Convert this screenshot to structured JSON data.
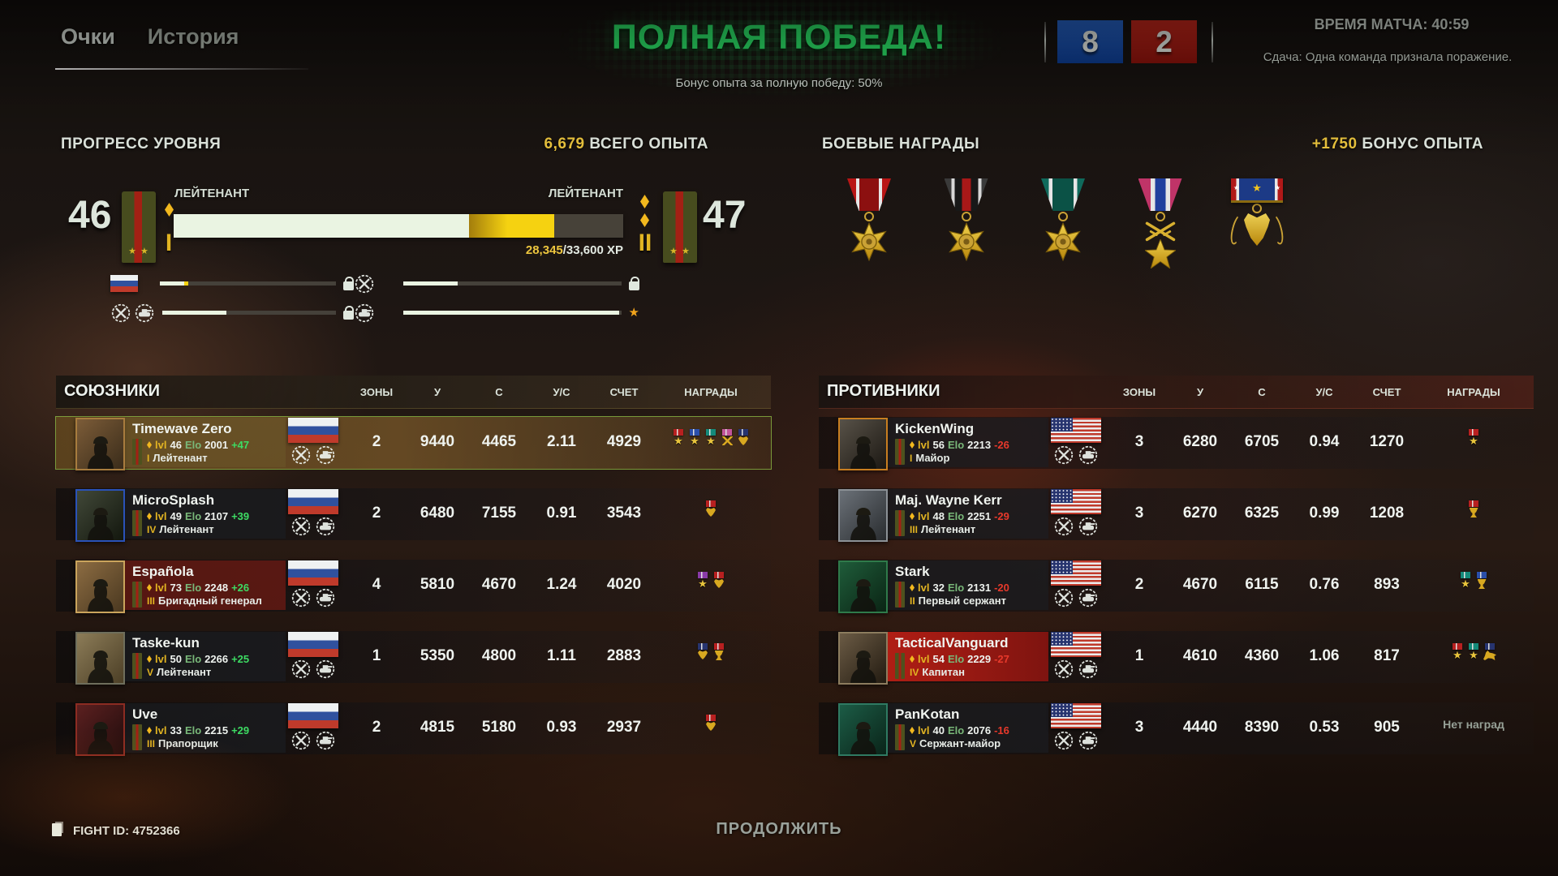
{
  "colors": {
    "victory_green": "#2ef26e",
    "xp_yellow": "#edc63e",
    "positive_green": "#3ddb63",
    "negative_red": "#e8392b",
    "score_blue": "#1a55b4",
    "score_red": "#b81c12",
    "gold": "#e2b422"
  },
  "labels": {
    "lvl": "lvl",
    "elo": "Elo"
  },
  "header": {
    "tabs": [
      {
        "label": "Очки"
      },
      {
        "label": "История"
      }
    ],
    "victory_title": "ПОЛНАЯ ПОБЕДА!",
    "victory_subtitle": "Бонус опыта за полную победу: 50%",
    "score_allies": "8",
    "score_enemies": "2",
    "match_time": "ВРЕМЯ МАТЧА: 40:59",
    "surrender_note": "Сдача: Одна команда признала поражение."
  },
  "progress": {
    "title": "ПРОГРЕСС УРОВНЯ",
    "total_xp": "6,679",
    "total_xp_label": " ВСЕГО ОПЫТА",
    "level_current": "46",
    "level_next": "47",
    "rank_current": "ЛЕЙТЕНАНТ",
    "rank_next": "ЛЕЙТЕНАНТ",
    "tier_current": "I",
    "tier_next": "II",
    "xp_current": "28,345",
    "xp_needed": "/33,600 XP",
    "bar_base_pct": 65.7,
    "bar_gain_pct": 19,
    "unlocks": [
      {
        "icons": [
          "flag-ru"
        ],
        "fill_pct": 14,
        "gain_pct": 2,
        "tip": "lock"
      },
      {
        "icons": [
          "wreath"
        ],
        "fill_pct": 25,
        "gain_pct": 0,
        "tip": "lock"
      },
      {
        "icons": [
          "wreath",
          "tank"
        ],
        "fill_pct": 37,
        "gain_pct": 0,
        "tip": "lock"
      },
      {
        "icons": [
          "tank"
        ],
        "fill_pct": 99,
        "gain_pct": 0,
        "tip": "star"
      }
    ]
  },
  "rewards": {
    "title": "БОЕВЫЕ НАГРАДЫ",
    "bonus": "+1750",
    "bonus_label": " БОНУС ОПЫТА",
    "medals": [
      {
        "name": "scales-star-medal",
        "ribbon": "r1"
      },
      {
        "name": "skull-star-medal",
        "ribbon": "r2"
      },
      {
        "name": "shield-star-medal",
        "ribbon": "r3"
      },
      {
        "name": "swords-star-medal",
        "ribbon": "r4"
      },
      {
        "name": "hound-medal",
        "ribbon": "r5"
      }
    ]
  },
  "allies": {
    "title": "СОЮЗНИКИ",
    "columns": [
      "ЗОНЫ",
      "У",
      "С",
      "У/С",
      "СЧЕТ",
      "НАГРАДЫ"
    ],
    "rows": [
      {
        "name": "Timewave Zero",
        "lvl": "46",
        "elo": "2001",
        "delta": "+47",
        "tier": "I",
        "rank": "Лейтенант",
        "nation": "ru",
        "zones": "2",
        "u": "9440",
        "c": "4465",
        "uc": "2.11",
        "score": "4929",
        "awards": [
          {
            "t": "star",
            "r": "#b82020"
          },
          {
            "t": "star",
            "r": "#2a4faa"
          },
          {
            "t": "star",
            "r": "#148a7a"
          },
          {
            "t": "swords",
            "r": "#c2559a"
          },
          {
            "t": "dog",
            "r": "#27346f"
          }
        ],
        "style": {
          "row": "hl",
          "plate": "pl-tan",
          "av": "av-a0",
          "bc": "#a87c3e"
        }
      },
      {
        "name": "MicroSplash",
        "lvl": "49",
        "elo": "2107",
        "delta": "+39",
        "tier": "IV",
        "rank": "Лейтенант",
        "nation": "ru",
        "zones": "2",
        "u": "6480",
        "c": "7155",
        "uc": "0.91",
        "score": "3543",
        "awards": [
          {
            "t": "dog",
            "r": "#b82020"
          }
        ],
        "style": {
          "row": "",
          "plate": "",
          "av": "av-a1",
          "bc": "#2a52b8"
        }
      },
      {
        "name": "Española",
        "lvl": "73",
        "elo": "2248",
        "delta": "+26",
        "tier": "III",
        "rank": "Бригадный генерал",
        "nation": "ru",
        "zones": "4",
        "u": "5810",
        "c": "4670",
        "uc": "1.24",
        "score": "4020",
        "awards": [
          {
            "t": "star",
            "r": "#8a3aa8"
          },
          {
            "t": "dog",
            "r": "#b82020"
          }
        ],
        "style": {
          "row": "",
          "plate": "pl-dred",
          "av": "av-a2",
          "bc": "#caa45c"
        }
      },
      {
        "name": "Taske-kun",
        "lvl": "50",
        "elo": "2266",
        "delta": "+25",
        "tier": "V",
        "rank": "Лейтенант",
        "nation": "ru",
        "zones": "1",
        "u": "5350",
        "c": "4800",
        "uc": "1.11",
        "score": "2883",
        "awards": [
          {
            "t": "dog",
            "r": "#27346f"
          },
          {
            "t": "cup",
            "r": "#b82020"
          }
        ],
        "style": {
          "row": "",
          "plate": "",
          "av": "av-a3",
          "bc": "#6e6e5c"
        }
      },
      {
        "name": "Uve",
        "lvl": "33",
        "elo": "2215",
        "delta": "+29",
        "tier": "III",
        "rank": "Прапорщик",
        "nation": "ru",
        "zones": "2",
        "u": "4815",
        "c": "5180",
        "uc": "0.93",
        "score": "2937",
        "awards": [
          {
            "t": "dog",
            "r": "#b82020"
          }
        ],
        "style": {
          "row": "",
          "plate": "",
          "av": "av-a4",
          "bc": "#8c2c22"
        }
      }
    ]
  },
  "enemies": {
    "title": "ПРОТИВНИКИ",
    "columns": [
      "ЗОНЫ",
      "У",
      "С",
      "У/С",
      "СЧЕТ",
      "НАГРАДЫ"
    ],
    "rows": [
      {
        "name": "KickenWing",
        "lvl": "56",
        "elo": "2213",
        "delta": "-26",
        "tier": "I",
        "rank": "Майор",
        "nation": "us",
        "zones": "3",
        "u": "6280",
        "c": "6705",
        "uc": "0.94",
        "score": "1270",
        "awards": [
          {
            "t": "star",
            "r": "#b82020"
          }
        ],
        "style": {
          "row": "",
          "plate": "",
          "av": "av-e0",
          "bc": "#c87e20"
        }
      },
      {
        "name": "Maj. Wayne Kerr",
        "lvl": "48",
        "elo": "2251",
        "delta": "-29",
        "tier": "III",
        "rank": "Лейтенант",
        "nation": "us",
        "zones": "3",
        "u": "6270",
        "c": "6325",
        "uc": "0.99",
        "score": "1208",
        "awards": [
          {
            "t": "cup",
            "r": "#b82020"
          }
        ],
        "style": {
          "row": "",
          "plate": "",
          "av": "av-e1",
          "bc": "#8c9196"
        }
      },
      {
        "name": "Stark",
        "lvl": "32",
        "elo": "2131",
        "delta": "-20",
        "tier": "II",
        "rank": "Первый сержант",
        "nation": "us",
        "zones": "2",
        "u": "4670",
        "c": "6115",
        "uc": "0.76",
        "score": "893",
        "awards": [
          {
            "t": "star",
            "r": "#148a7a"
          },
          {
            "t": "cup",
            "r": "#2a4faa"
          }
        ],
        "style": {
          "row": "",
          "plate": "",
          "av": "av-e2",
          "bc": "#2f7a4a"
        }
      },
      {
        "name": "TacticalVanguard",
        "lvl": "54",
        "elo": "2229",
        "delta": "-27",
        "tier": "IV",
        "rank": "Капитан",
        "nation": "us",
        "zones": "1",
        "u": "4610",
        "c": "4360",
        "uc": "1.06",
        "score": "817",
        "awards": [
          {
            "t": "star",
            "r": "#b82020"
          },
          {
            "t": "star",
            "r": "#148a7a"
          },
          {
            "t": "deer",
            "r": "#27346f"
          }
        ],
        "style": {
          "row": "",
          "plate": "pl-red",
          "av": "av-e3",
          "bc": "#8c7c5e"
        }
      },
      {
        "name": "PanKotan",
        "lvl": "40",
        "elo": "2076",
        "delta": "-16",
        "tier": "V",
        "rank": "Сержант-майор",
        "nation": "us",
        "zones": "3",
        "u": "4440",
        "c": "8390",
        "uc": "0.53",
        "score": "905",
        "awards": [],
        "no_awards": "Нет наград",
        "style": {
          "row": "",
          "plate": "",
          "av": "av-e4",
          "bc": "#2f7a62"
        }
      }
    ]
  },
  "footer": {
    "fight_id": "FIGHT ID: 4752366",
    "continue_label": "ПРОДОЛЖИТЬ"
  }
}
